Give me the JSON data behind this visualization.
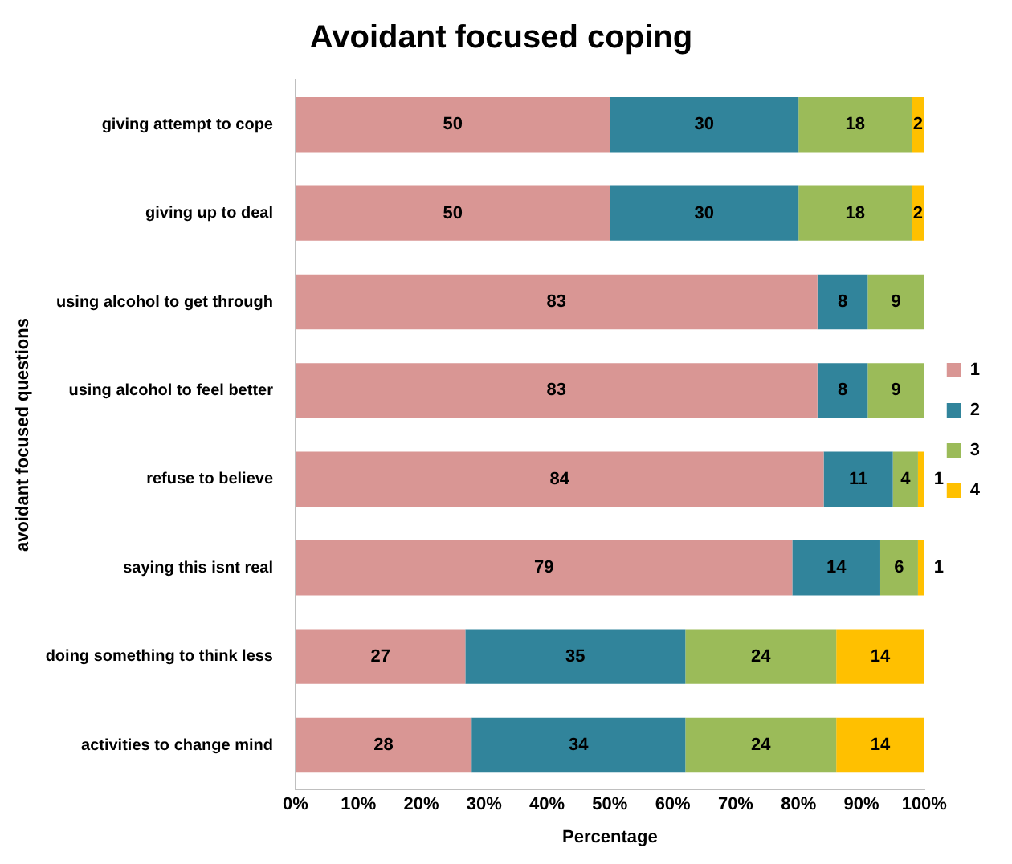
{
  "chart_data": {
    "type": "bar",
    "orientation": "horizontal",
    "stacked": true,
    "title": "Avoidant focused coping",
    "xlabel": "Percentage",
    "ylabel": "avoidant focused questions",
    "categories": [
      "giving attempt to cope",
      "giving up to deal",
      "using alcohol to get through",
      "using alcohol to feel better",
      "refuse to believe",
      "saying this isnt real",
      "doing something to think less",
      "activities to change mind"
    ],
    "series": [
      {
        "name": "1",
        "color": "#d99694",
        "values": [
          50,
          50,
          83,
          83,
          84,
          79,
          27,
          28
        ]
      },
      {
        "name": "2",
        "color": "#31849b",
        "values": [
          30,
          30,
          8,
          8,
          11,
          14,
          35,
          34
        ]
      },
      {
        "name": "3",
        "color": "#9bbb59",
        "values": [
          18,
          18,
          9,
          9,
          4,
          6,
          24,
          24
        ]
      },
      {
        "name": "4",
        "color": "#ffc000",
        "values": [
          2,
          2,
          null,
          null,
          1,
          1,
          14,
          14
        ]
      }
    ],
    "xlim": [
      0,
      100
    ],
    "xticks": [
      {
        "value": 0,
        "label": "0%"
      },
      {
        "value": 10,
        "label": "10%"
      },
      {
        "value": 20,
        "label": "20%"
      },
      {
        "value": 30,
        "label": "30%"
      },
      {
        "value": 40,
        "label": "40%"
      },
      {
        "value": 50,
        "label": "50%"
      },
      {
        "value": 60,
        "label": "60%"
      },
      {
        "value": 70,
        "label": "70%"
      },
      {
        "value": 80,
        "label": "80%"
      },
      {
        "value": 90,
        "label": "90%"
      },
      {
        "value": 100,
        "label": "100%"
      }
    ],
    "data_labels": true,
    "legend": "right"
  }
}
